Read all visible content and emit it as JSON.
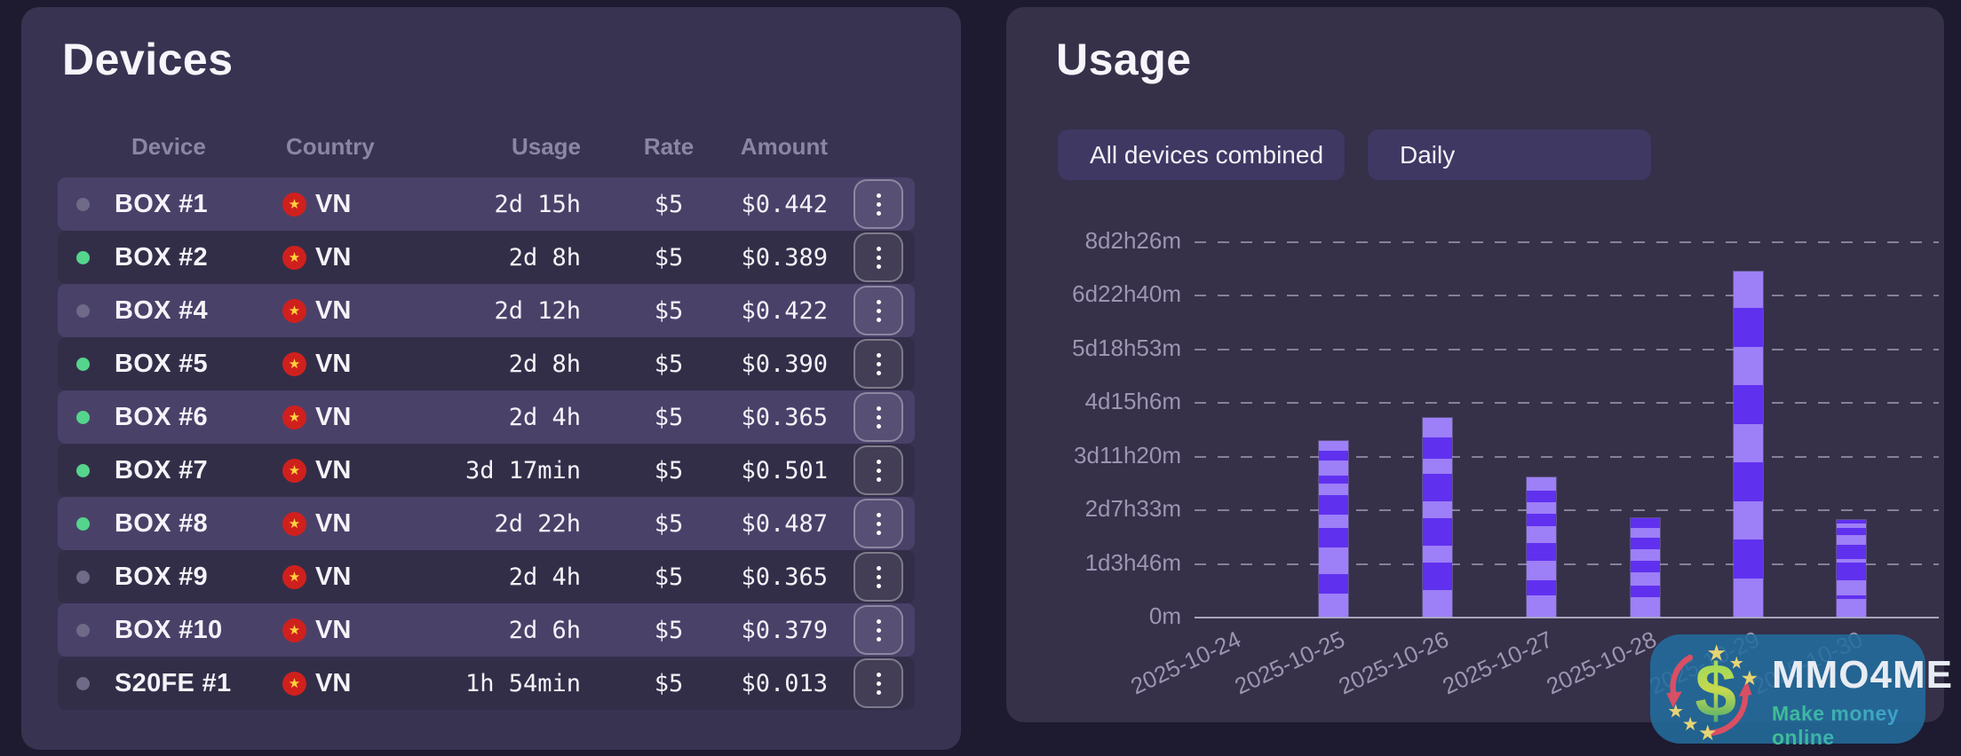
{
  "devices_panel": {
    "title": "Devices",
    "columns": [
      "Device",
      "Country",
      "Usage",
      "Rate",
      "Amount"
    ],
    "rows": [
      {
        "status": "offline",
        "name": "BOX #1",
        "country": "VN",
        "usage": "2d 15h",
        "rate": "$5",
        "amount": "$0.442",
        "highlighted": true
      },
      {
        "status": "online",
        "name": "BOX #2",
        "country": "VN",
        "usage": "2d 8h",
        "rate": "$5",
        "amount": "$0.389",
        "highlighted": false
      },
      {
        "status": "offline",
        "name": "BOX #4",
        "country": "VN",
        "usage": "2d 12h",
        "rate": "$5",
        "amount": "$0.422",
        "highlighted": true
      },
      {
        "status": "online",
        "name": "BOX #5",
        "country": "VN",
        "usage": "2d 8h",
        "rate": "$5",
        "amount": "$0.390",
        "highlighted": false
      },
      {
        "status": "online",
        "name": "BOX #6",
        "country": "VN",
        "usage": "2d 4h",
        "rate": "$5",
        "amount": "$0.365",
        "highlighted": true
      },
      {
        "status": "online",
        "name": "BOX #7",
        "country": "VN",
        "usage": "3d 17min",
        "rate": "$5",
        "amount": "$0.501",
        "highlighted": false
      },
      {
        "status": "online",
        "name": "BOX #8",
        "country": "VN",
        "usage": "2d 22h",
        "rate": "$5",
        "amount": "$0.487",
        "highlighted": true
      },
      {
        "status": "offline",
        "name": "BOX #9",
        "country": "VN",
        "usage": "2d 4h",
        "rate": "$5",
        "amount": "$0.365",
        "highlighted": false
      },
      {
        "status": "offline",
        "name": "BOX #10",
        "country": "VN",
        "usage": "2d 6h",
        "rate": "$5",
        "amount": "$0.379",
        "highlighted": true
      },
      {
        "status": "offline",
        "name": "S20FE #1",
        "country": "VN",
        "usage": "1h 54min",
        "rate": "$5",
        "amount": "$0.013",
        "highlighted": false
      }
    ]
  },
  "usage_panel": {
    "title": "Usage",
    "filters": {
      "devices": "All devices combined",
      "period": "Daily"
    }
  },
  "chart_data": {
    "type": "bar",
    "stacked": true,
    "title": "Usage",
    "xlabel": "",
    "ylabel": "",
    "grid": "dashed horizontal gridlines",
    "legend": "none",
    "categories": [
      "2025-10-24",
      "2025-10-25",
      "2025-10-26",
      "2025-10-27",
      "2025-10-28",
      "2025-10-29",
      "2025-10-30"
    ],
    "y_ticks": [
      "0m",
      "1d3h46m",
      "2d7h33m",
      "3d11h20m",
      "4d15h6m",
      "5d18h53m",
      "6d22h40m",
      "8d2h26m"
    ],
    "y_max_hours": 194.43,
    "totals_hours": [
      0,
      91,
      103,
      72,
      51,
      179,
      50
    ],
    "bars": [
      {
        "date": "2025-10-24",
        "total_hours": 0,
        "segments_hours": []
      },
      {
        "date": "2025-10-25",
        "total_hours": 91,
        "segments_hours": [
          12,
          10,
          14,
          10,
          7,
          10,
          6,
          4,
          8,
          5,
          5
        ]
      },
      {
        "date": "2025-10-26",
        "total_hours": 103,
        "segments_hours": [
          14,
          14,
          9,
          14,
          9,
          14,
          8,
          11,
          10
        ]
      },
      {
        "date": "2025-10-27",
        "total_hours": 72,
        "segments_hours": [
          11,
          8,
          10,
          9,
          9,
          6,
          6,
          6,
          7
        ]
      },
      {
        "date": "2025-10-28",
        "total_hours": 51,
        "segments_hours": [
          10,
          6,
          7,
          6,
          6,
          6,
          5,
          5
        ]
      },
      {
        "date": "2025-10-29",
        "total_hours": 179,
        "segments_hours": [
          20,
          20,
          20,
          20,
          20,
          20,
          20,
          20,
          19
        ]
      },
      {
        "date": "2025-10-30",
        "total_hours": 50,
        "segments_hours": [
          9,
          2,
          8,
          9,
          2,
          7,
          5,
          4,
          2,
          2
        ]
      }
    ]
  },
  "colors": {
    "page_bg": "#1e1a2f",
    "devices_panel_bg": "#393352",
    "usage_panel_bg": "#363049",
    "row_highlight": "#4a4169",
    "row_normal": "#332e48",
    "bar_segment_light": "#9d7ff7",
    "bar_segment_dark": "#6030ef",
    "status_online": "#55d48c",
    "status_offline": "#6e6a87",
    "flag_red": "#d0201e",
    "flag_star_yellow": "#ffd43d",
    "axis_text": "#9b96b2"
  },
  "watermark": {
    "title": "MMO4ME",
    "subtitle": "Make money online",
    "logo": "dollar-sign-with-stars-and-arrows"
  }
}
